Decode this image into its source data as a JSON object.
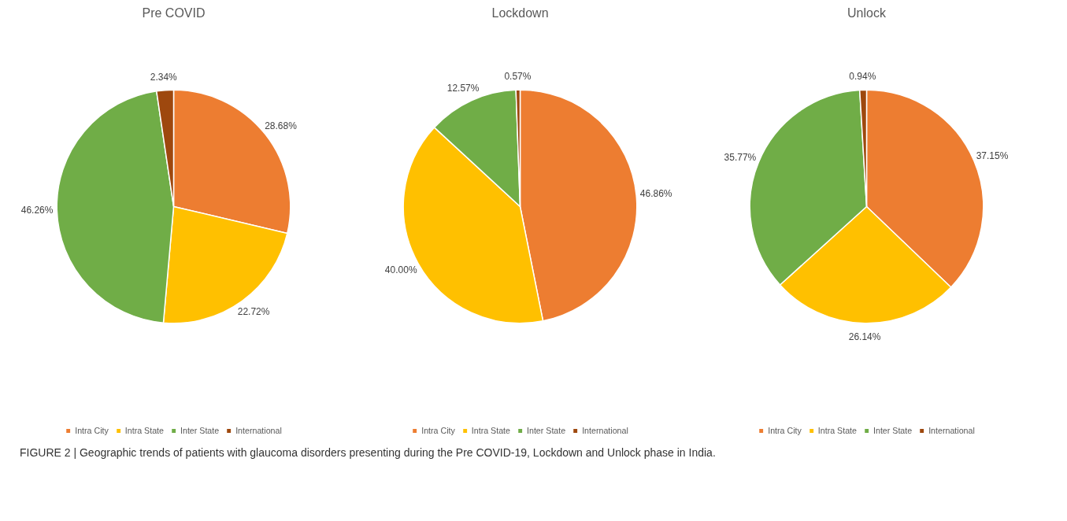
{
  "chart_data": [
    {
      "type": "pie",
      "title": "Pre COVID",
      "categories": [
        "Intra City",
        "Intra State",
        "Inter State",
        "International"
      ],
      "values": [
        28.68,
        22.72,
        46.26,
        2.34
      ],
      "colors": [
        "#ed7d31",
        "#ffc000",
        "#70ad47",
        "#9e480e"
      ],
      "value_labels": [
        "28.68%",
        "22.72%",
        "46.26%",
        "2.34%"
      ],
      "legend": "bottom",
      "annotations": [
        "FIGURE 2 | Geographic trends of patients with glaucoma disorders presenting during the Pre COVID-19, Lockdown and Unlock phase in India."
      ]
    },
    {
      "type": "pie",
      "title": "Lockdown",
      "categories": [
        "Intra City",
        "Intra State",
        "Inter State",
        "International"
      ],
      "values": [
        46.86,
        40.0,
        12.57,
        0.57
      ],
      "colors": [
        "#ed7d31",
        "#ffc000",
        "#70ad47",
        "#9e480e"
      ],
      "value_labels": [
        "46.86%",
        "40.00%",
        "12.57%",
        "0.57%"
      ],
      "legend": "bottom"
    },
    {
      "type": "pie",
      "title": "Unlock",
      "categories": [
        "Intra City",
        "Intra State",
        "Inter State",
        "International"
      ],
      "values": [
        37.15,
        26.14,
        35.77,
        0.94
      ],
      "colors": [
        "#ed7d31",
        "#ffc000",
        "#70ad47",
        "#9e480e"
      ],
      "value_labels": [
        "37.15%",
        "26.14%",
        "35.77%",
        "0.94%"
      ],
      "legend": "bottom"
    }
  ]
}
